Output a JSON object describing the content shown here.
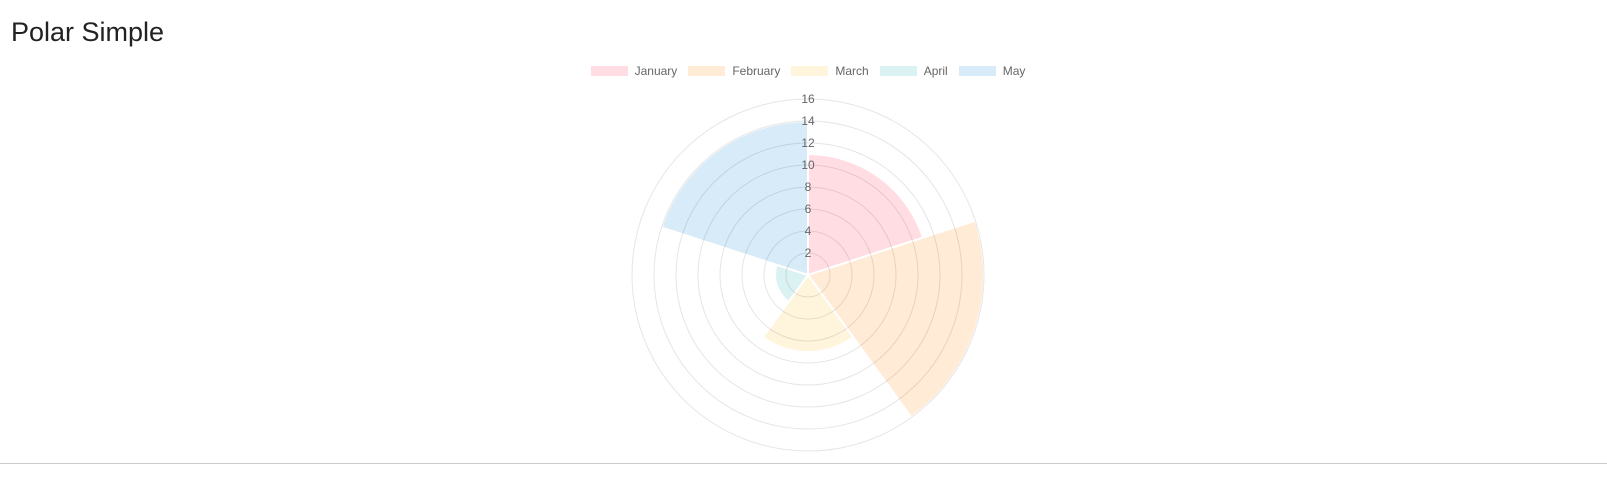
{
  "page": {
    "title": "Polar Simple"
  },
  "chart_data": {
    "type": "polarArea",
    "title": "Polar Simple",
    "categories": [
      "January",
      "February",
      "March",
      "April",
      "May"
    ],
    "values": [
      11,
      16,
      7,
      3,
      14
    ],
    "colors": [
      "#ffdde3",
      "#ffebd6",
      "#fff4dc",
      "#dbf2f2",
      "#d7ebf8"
    ],
    "rlim": [
      0,
      16
    ],
    "ticks": [
      "2",
      "4",
      "6",
      "8",
      "10",
      "12",
      "14",
      "16"
    ],
    "legend": "top",
    "grid": true
  }
}
